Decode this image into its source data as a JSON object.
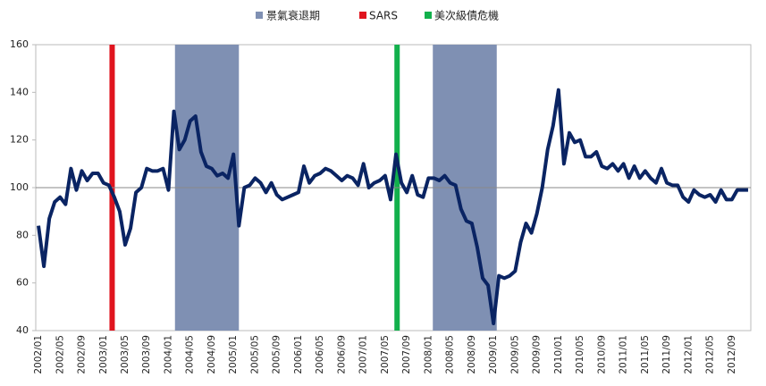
{
  "chart_data": {
    "type": "line",
    "categories": [
      "2002/01",
      null,
      null,
      null,
      "2002/05",
      null,
      null,
      null,
      "2002/09",
      null,
      null,
      null,
      "2003/01",
      null,
      null,
      null,
      "2003/05",
      null,
      null,
      null,
      "2003/09",
      null,
      null,
      null,
      "2004/01",
      null,
      null,
      null,
      "2004/05",
      null,
      null,
      null,
      "2004/09",
      null,
      null,
      null,
      "2005/01",
      null,
      null,
      null,
      "2005/05",
      null,
      null,
      null,
      "2005/09",
      null,
      null,
      null,
      "2006/01",
      null,
      null,
      null,
      "2006/05",
      null,
      null,
      null,
      "2006/09",
      null,
      null,
      null,
      "2007/01",
      null,
      null,
      null,
      "2007/05",
      null,
      null,
      null,
      "2007/09",
      null,
      null,
      null,
      "2008/01",
      null,
      null,
      null,
      "2008/05",
      null,
      null,
      null,
      "2008/09",
      null,
      null,
      null,
      "2009/01",
      null,
      null,
      null,
      "2009/05",
      null,
      null,
      null,
      "2009/09",
      null,
      null,
      null,
      "2010/01",
      null,
      null,
      null,
      "2010/05",
      null,
      null,
      null,
      "2010/09",
      null,
      null,
      null,
      "2011/01",
      null,
      null,
      null,
      "2011/05",
      null,
      null,
      null,
      "2011/09",
      null,
      null,
      null,
      "2012/01",
      null,
      null,
      null,
      "2012/05",
      null,
      null,
      null,
      "2012/09",
      null,
      null,
      null
    ],
    "series": [
      {
        "color": "#0a2463",
        "values": [
          84,
          67,
          87,
          94,
          96,
          93,
          108,
          99,
          107,
          103,
          106,
          106,
          102,
          101,
          96,
          90,
          76,
          83,
          98,
          100,
          108,
          107,
          107,
          108,
          99,
          132,
          116,
          120,
          128,
          130,
          115,
          109,
          108,
          105,
          106,
          104,
          114,
          84,
          100,
          101,
          104,
          102,
          98,
          102,
          97,
          95,
          96,
          97,
          98,
          109,
          102,
          105,
          106,
          108,
          107,
          105,
          103,
          105,
          104,
          101,
          110,
          100,
          102,
          103,
          105,
          95,
          114,
          102,
          98,
          105,
          97,
          96,
          104,
          104,
          103,
          105,
          102,
          101,
          91,
          86,
          85,
          75,
          62,
          59,
          43,
          63,
          62,
          63,
          65,
          77,
          85,
          81,
          89,
          100,
          116,
          126,
          141,
          110,
          123,
          119,
          120,
          113,
          113,
          115,
          109,
          108,
          110,
          107,
          110,
          104,
          109,
          104,
          107,
          104,
          102,
          108,
          102,
          101,
          101,
          96,
          94,
          99,
          97,
          96,
          97,
          94,
          99,
          95,
          95,
          99,
          99,
          99
        ]
      }
    ],
    "ylim": [
      40,
      160
    ],
    "yticks": [
      40,
      60,
      80,
      100,
      120,
      140,
      160
    ],
    "reference_line": 100,
    "shaded_periods": {
      "name": "景氣衰退期",
      "color": "#7f90b3",
      "ranges": [
        [
          25.2,
          37.0
        ],
        [
          72.8,
          84.6
        ]
      ]
    },
    "events": [
      {
        "name": "SARS",
        "color": "#e0141e",
        "x": 13.6
      },
      {
        "name": "美次級債危機",
        "color": "#12b04c",
        "x": 66.2
      }
    ]
  }
}
